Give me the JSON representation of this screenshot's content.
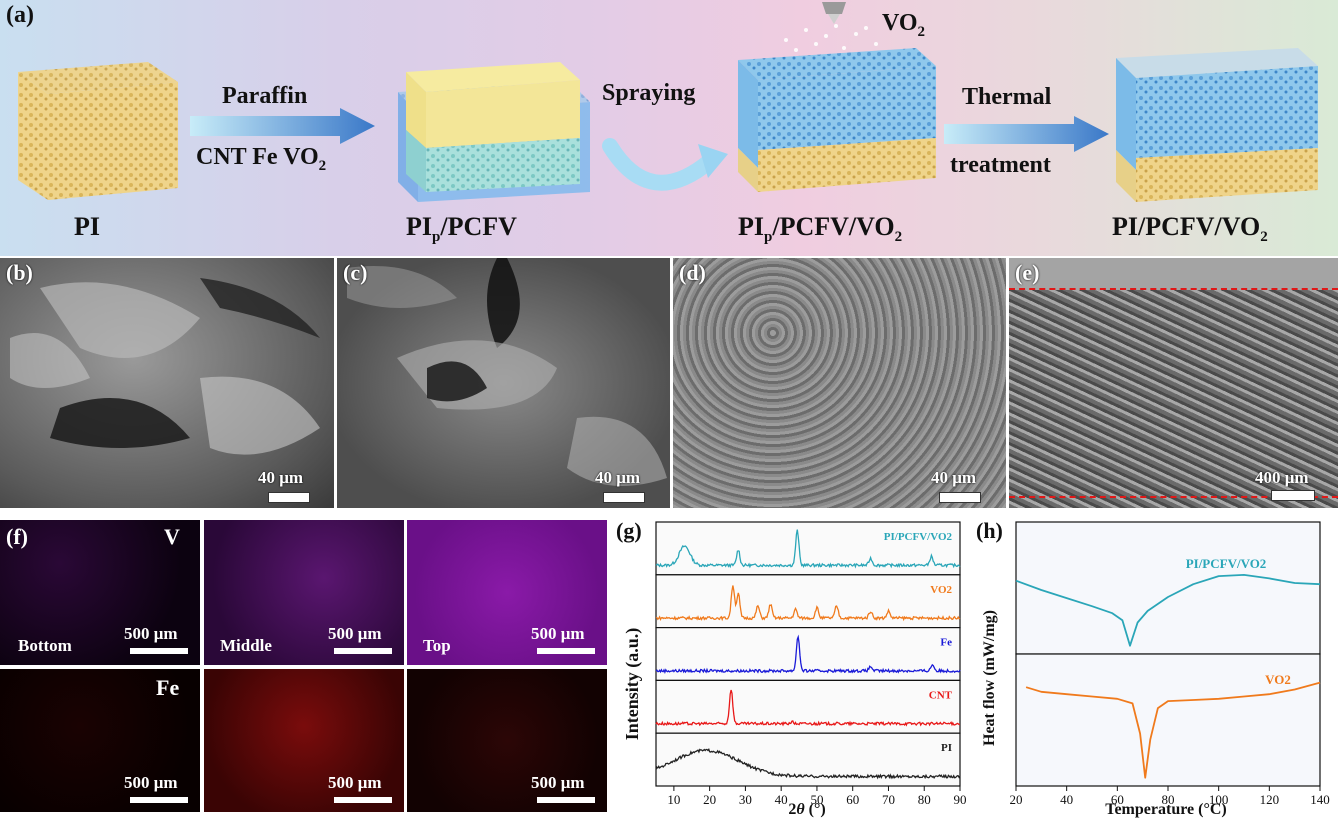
{
  "panel_a": {
    "label": "(a)",
    "pi": "PI",
    "arrow1_top": "Paraffin",
    "arrow1_bottom": "CNT Fe VO",
    "arrow1_sub": "2",
    "pip_pcfv_main": "PI",
    "pip_pcfv_sub": "p",
    "pip_pcfv_rest": "/PCFV",
    "spraying": "Spraying",
    "vo2": "VO",
    "vo2_sub": "2",
    "pip_pcfv_vo2_main": "PI",
    "pip_pcfv_vo2_sub": "p",
    "pip_pcfv_vo2_rest": "/PCFV/VO",
    "pip_pcfv_vo2_sub2": "2",
    "thermal": "Thermal",
    "treatment": "treatment",
    "final_main": "PI/PCFV/VO",
    "final_sub": "2"
  },
  "sem": [
    {
      "letter": "(b)",
      "scale": "40 μm"
    },
    {
      "letter": "(c)",
      "scale": "40 μm"
    },
    {
      "letter": "(d)",
      "scale": "40 μm"
    },
    {
      "letter": "(e)",
      "scale": "400 μm"
    }
  ],
  "eds": {
    "letter": "(f)",
    "element_v": "V",
    "element_fe": "Fe",
    "positions": [
      "Bottom",
      "Middle",
      "Top"
    ],
    "scale": "500 μm",
    "colors": {
      "v": "#7a1aa0",
      "fe": "#b01010"
    }
  },
  "chart_g": {
    "letter": "(g)",
    "ylabel": "Intensity (a.u.)",
    "xlabel_theta": "θ",
    "xlabel_pre": "2",
    "xlabel_post": " (°)",
    "xticks": [
      "10",
      "20",
      "30",
      "40",
      "50",
      "60",
      "70",
      "80",
      "90"
    ]
  },
  "chart_h": {
    "letter": "(h)",
    "ylabel": "Heat flow (mW/mg)",
    "xlabel": "Temperature (°C)",
    "xticks": [
      "20",
      "40",
      "60",
      "80",
      "100",
      "120",
      "140"
    ]
  },
  "chart_data": [
    {
      "type": "line",
      "panel": "g",
      "xlabel": "2θ (°)",
      "ylabel": "Intensity (a.u.)",
      "xlim": [
        5,
        90
      ],
      "series": [
        {
          "name": "PI/PCFV/VO2",
          "color": "#2aa6b8",
          "peaks": [
            [
              13,
              0.55
            ],
            [
              28,
              0.45
            ],
            [
              44.5,
              1.0
            ],
            [
              65,
              0.2
            ],
            [
              82,
              0.25
            ]
          ]
        },
        {
          "name": "VO2",
          "color": "#f07a1c",
          "peaks": [
            [
              26.5,
              0.95
            ],
            [
              28,
              0.7
            ],
            [
              33.5,
              0.35
            ],
            [
              37,
              0.4
            ],
            [
              44,
              0.25
            ],
            [
              50,
              0.3
            ],
            [
              55.5,
              0.35
            ],
            [
              65,
              0.2
            ],
            [
              70,
              0.2
            ]
          ]
        },
        {
          "name": "Fe",
          "color": "#1a1ad8",
          "peaks": [
            [
              44.7,
              1.0
            ],
            [
              65,
              0.12
            ],
            [
              82.3,
              0.18
            ]
          ]
        },
        {
          "name": "CNT",
          "color": "#e81818",
          "peaks": [
            [
              26,
              1.0
            ],
            [
              43,
              0.05
            ]
          ]
        },
        {
          "name": "PI",
          "color": "#222222",
          "peaks": [
            [
              19,
              0.75
            ]
          ]
        }
      ]
    },
    {
      "type": "line",
      "panel": "h",
      "xlabel": "Temperature (°C)",
      "ylabel": "Heat flow (mW/mg)",
      "xlim": [
        20,
        140
      ],
      "series": [
        {
          "name": "PI/PCFV/VO2",
          "color": "#2aa6b8",
          "x": [
            20,
            30,
            40,
            50,
            58,
            62,
            65,
            68,
            72,
            80,
            90,
            100,
            110,
            120,
            130,
            140
          ],
          "y": [
            0.58,
            0.5,
            0.43,
            0.36,
            0.3,
            0.24,
            0.02,
            0.22,
            0.32,
            0.44,
            0.55,
            0.62,
            0.63,
            0.6,
            0.56,
            0.55
          ]
        },
        {
          "name": "VO2",
          "color": "#f07a1c",
          "x": [
            24,
            30,
            40,
            50,
            60,
            66,
            69,
            71,
            73,
            76,
            80,
            90,
            100,
            110,
            120,
            130,
            140
          ],
          "y": [
            0.8,
            0.76,
            0.74,
            0.72,
            0.7,
            0.66,
            0.4,
            0.02,
            0.35,
            0.62,
            0.68,
            0.69,
            0.7,
            0.72,
            0.74,
            0.78,
            0.84
          ]
        }
      ]
    }
  ]
}
